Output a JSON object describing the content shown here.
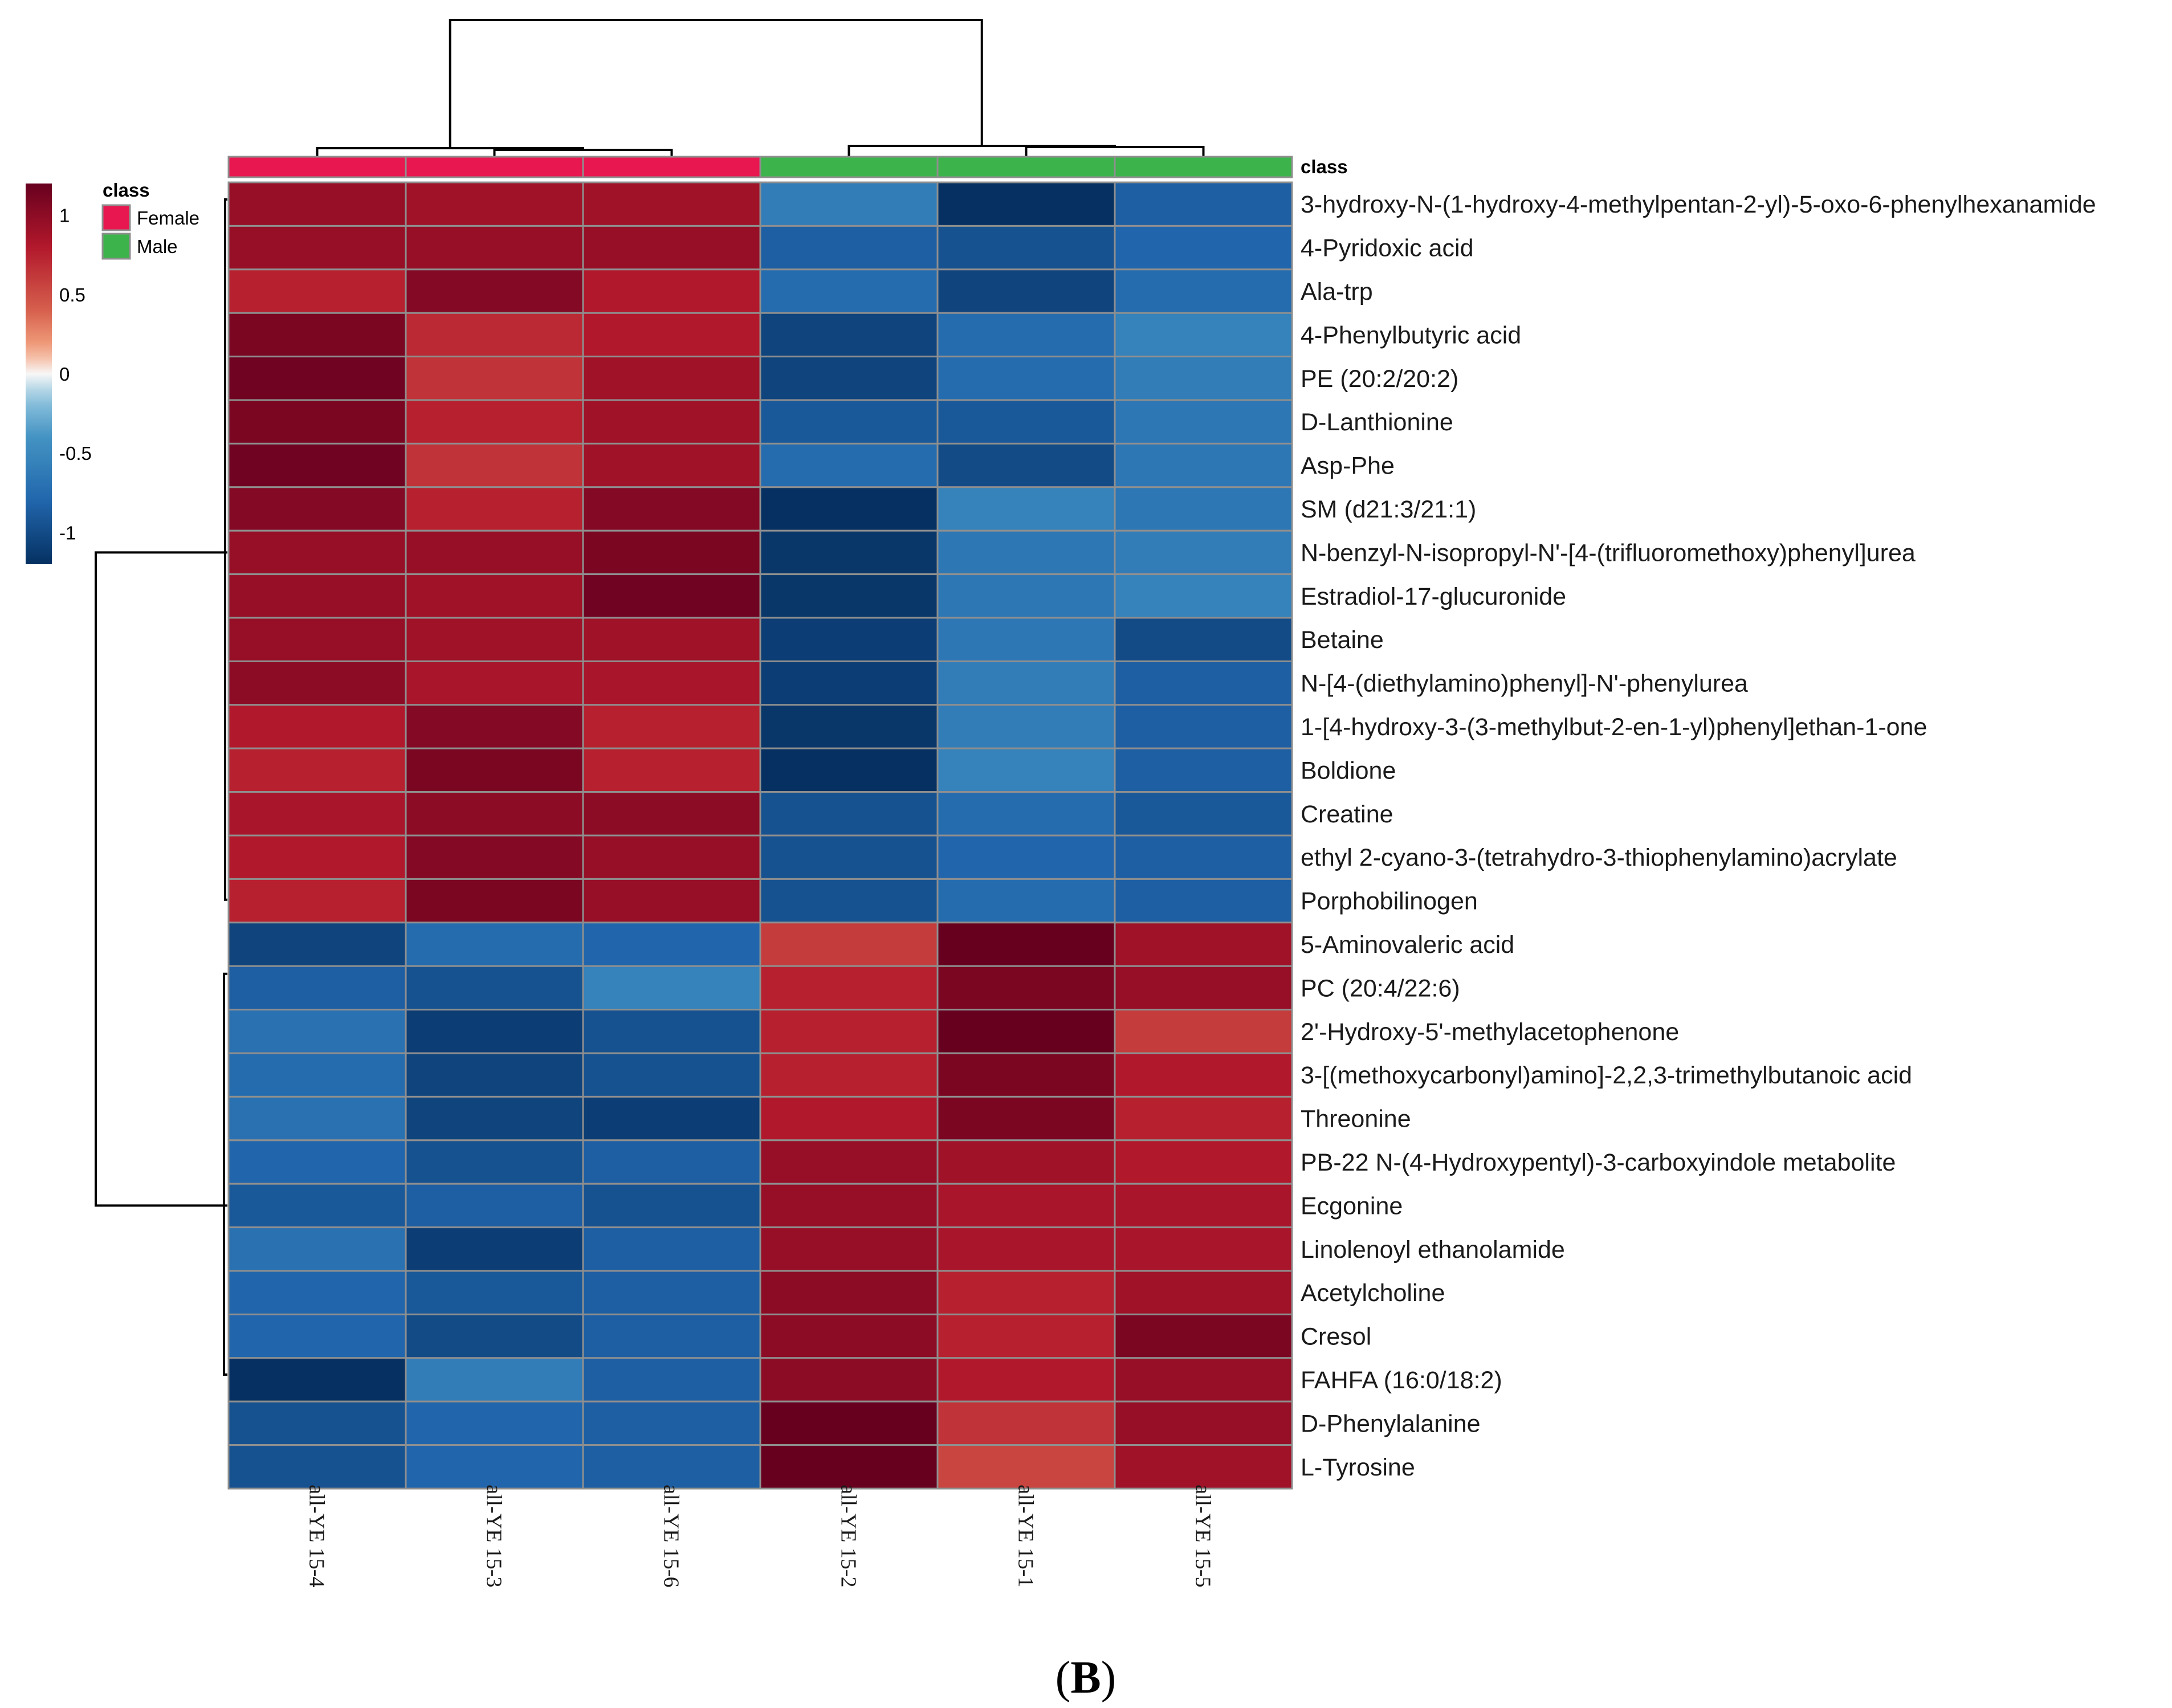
{
  "chart_data": {
    "type": "heatmap",
    "title": "",
    "class_label": "class",
    "columns": [
      "all-YE 15-4",
      "all-YE 15-3",
      "all-YE 15-6",
      "all-YE 15-2",
      "all-YE 15-1",
      "all-YE 15-5"
    ],
    "column_classes": [
      "Female",
      "Female",
      "Female",
      "Male",
      "Male",
      "Male"
    ],
    "classes": [
      {
        "name": "Female",
        "color": "#e8174f"
      },
      {
        "name": "Male",
        "color": "#3cb44b"
      }
    ],
    "colorscale": {
      "min": -1.2,
      "max": 1.2,
      "ticks": [
        {
          "value": 1,
          "label": "1"
        },
        {
          "value": 0.5,
          "label": "0.5"
        },
        {
          "value": 0,
          "label": "0"
        },
        {
          "value": -0.5,
          "label": "-0.5"
        },
        {
          "value": -1,
          "label": "-1"
        }
      ],
      "low_color": "#053061",
      "mid_color": "#f7f7f7",
      "high_color": "#67001f"
    },
    "rows": [
      "3-hydroxy-N-(1-hydroxy-4-methylpentan-2-yl)-5-oxo-6-phenylhexanamide",
      "4-Pyridoxic acid",
      "Ala-trp",
      "4-Phenylbutyric acid",
      "PE (20:2/20:2)",
      "D-Lanthionine",
      "Asp-Phe",
      "SM (d21:3/21:1)",
      "N-benzyl-N-isopropyl-N'-[4-(trifluoromethoxy)phenyl]urea",
      "Estradiol-17-glucuronide",
      "Betaine",
      "N-[4-(diethylamino)phenyl]-N'-phenylurea",
      "1-[4-hydroxy-3-(3-methylbut-2-en-1-yl)phenyl]ethan-1-one",
      "Boldione",
      "Creatine",
      "ethyl 2-cyano-3-(tetrahydro-3-thiophenylamino)acrylate",
      "Porphobilinogen",
      "5-Aminovaleric acid",
      "PC (20:4/22:6)",
      "2'-Hydroxy-5'-methylacetophenone",
      "3-[(methoxycarbonyl)amino]-2,2,3-trimethylbutanoic acid",
      "Threonine",
      "PB-22 N-(4-Hydroxypentyl)-3-carboxyindole metabolite",
      "Ecgonine",
      "Linolenoyl ethanolamide",
      "Acetylcholine",
      "Cresol",
      "FAHFA (16:0/18:2)",
      "D-Phenylalanine",
      "L-Tyrosine"
    ],
    "values": [
      [
        0.95,
        0.9,
        0.9,
        -0.6,
        -1.2,
        -0.85
      ],
      [
        0.95,
        0.95,
        0.95,
        -0.85,
        -0.95,
        -0.8
      ],
      [
        0.75,
        1.05,
        0.8,
        -0.75,
        -1.05,
        -0.75
      ],
      [
        1.1,
        0.7,
        0.8,
        -1.05,
        -0.75,
        -0.55
      ],
      [
        1.15,
        0.65,
        0.9,
        -1.05,
        -0.75,
        -0.6
      ],
      [
        1.1,
        0.75,
        0.9,
        -0.9,
        -0.9,
        -0.65
      ],
      [
        1.15,
        0.65,
        0.9,
        -0.75,
        -1.0,
        -0.65
      ],
      [
        1.05,
        0.75,
        1.05,
        -1.2,
        -0.55,
        -0.65
      ],
      [
        0.95,
        0.95,
        1.1,
        -1.15,
        -0.65,
        -0.6
      ],
      [
        0.95,
        0.9,
        1.15,
        -1.15,
        -0.65,
        -0.55
      ],
      [
        0.95,
        0.9,
        0.9,
        -1.1,
        -0.65,
        -1.0
      ],
      [
        1.0,
        0.85,
        0.85,
        -1.1,
        -0.6,
        -0.85
      ],
      [
        0.8,
        1.05,
        0.75,
        -1.15,
        -0.6,
        -0.85
      ],
      [
        0.75,
        1.1,
        0.75,
        -1.2,
        -0.55,
        -0.85
      ],
      [
        0.85,
        1.0,
        1.0,
        -0.95,
        -0.75,
        -0.9
      ],
      [
        0.8,
        1.05,
        0.95,
        -0.95,
        -0.8,
        -0.85
      ],
      [
        0.75,
        1.1,
        0.95,
        -0.95,
        -0.75,
        -0.85
      ],
      [
        -1.05,
        -0.75,
        -0.8,
        0.6,
        1.2,
        0.9
      ],
      [
        -0.85,
        -0.95,
        -0.55,
        0.75,
        1.1,
        0.95
      ],
      [
        -0.7,
        -1.1,
        -0.95,
        0.75,
        1.2,
        0.6
      ],
      [
        -0.75,
        -1.05,
        -0.95,
        0.75,
        1.1,
        0.8
      ],
      [
        -0.7,
        -1.05,
        -1.1,
        0.8,
        1.1,
        0.75
      ],
      [
        -0.8,
        -0.95,
        -0.85,
        0.95,
        0.9,
        0.8
      ],
      [
        -0.9,
        -0.85,
        -0.95,
        0.95,
        0.85,
        0.85
      ],
      [
        -0.7,
        -1.1,
        -0.85,
        0.95,
        0.85,
        0.85
      ],
      [
        -0.8,
        -0.9,
        -0.85,
        1.0,
        0.75,
        0.9
      ],
      [
        -0.8,
        -1.0,
        -0.85,
        1.0,
        0.75,
        1.1
      ],
      [
        -1.2,
        -0.6,
        -0.85,
        1.0,
        0.8,
        0.95
      ],
      [
        -0.95,
        -0.8,
        -0.85,
        1.2,
        0.65,
        0.95
      ],
      [
        -0.95,
        -0.8,
        -0.85,
        1.2,
        0.55,
        0.9
      ]
    ],
    "row_dendrogram": "two clusters: rows 1-17 (higher in Female) and rows 18-30 (higher in Male)",
    "column_dendrogram": "two clusters: Female columns and Male columns"
  },
  "caption": {
    "open": "(",
    "letter": "B",
    "close": ")"
  }
}
